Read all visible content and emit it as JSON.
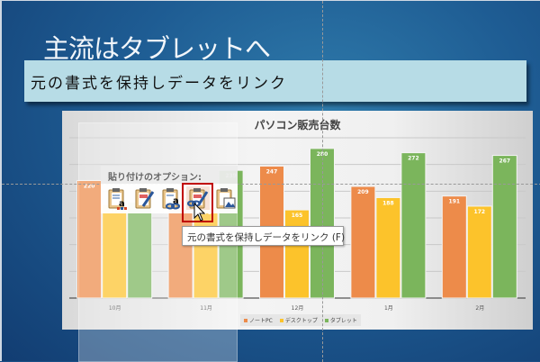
{
  "slide": {
    "title": "主流はタブレットへ",
    "banner": "元の書式を保持しデータをリンク"
  },
  "paste_options": {
    "header": "貼り付けのオプション:",
    "icons": [
      "keep-source-formatting-embed-icon",
      "use-destination-theme-embed-icon",
      "use-destination-theme-link-icon",
      "keep-source-formatting-link-icon",
      "picture-icon"
    ],
    "selected_index": 3,
    "tooltip": "元の書式を保持しデータをリンク (F)"
  },
  "chart_data": {
    "type": "bar",
    "title": "パソコン販売台数",
    "categories": [
      "10月",
      "11月",
      "12月",
      "1月",
      "2月"
    ],
    "series": [
      {
        "name": "ノートPC",
        "color": "#ed8b4a",
        "values": [
          220,
          200,
          247,
          209,
          191
        ]
      },
      {
        "name": "デスクトップ",
        "color": "#fcc32b",
        "values": [
          175,
          170,
          165,
          188,
          172
        ]
      },
      {
        "name": "タブレット",
        "color": "#7bb55c",
        "values": [
          180,
          239,
          280,
          272,
          267
        ]
      }
    ],
    "ylim": [
      0,
      300
    ],
    "grid": true,
    "legend": "bottom"
  }
}
